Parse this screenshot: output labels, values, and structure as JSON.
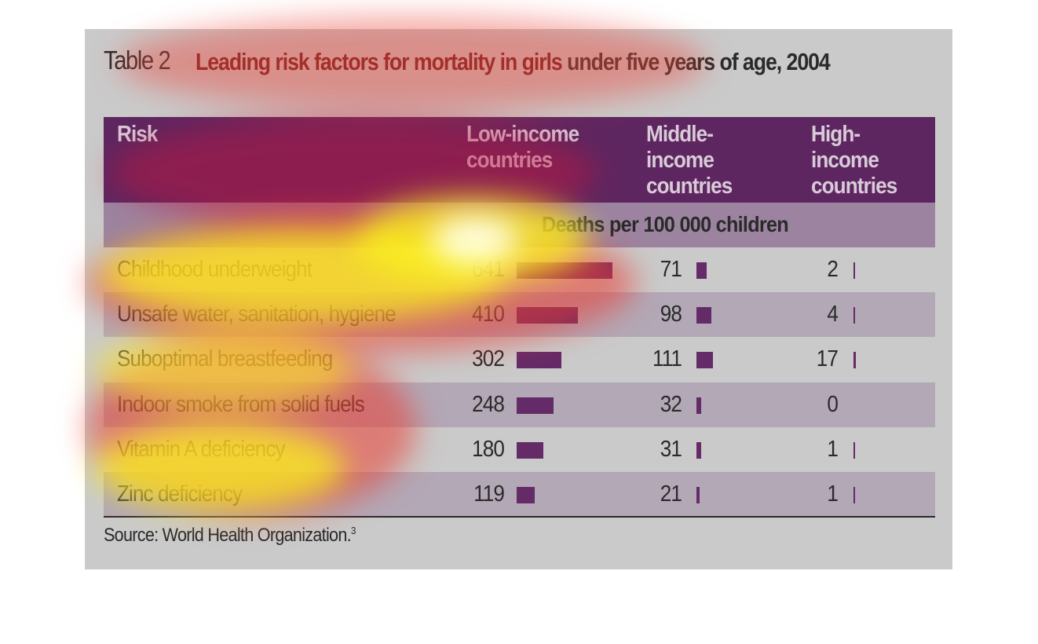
{
  "table_label": "Table 2",
  "title_highlight": "Leading risk factors for mortality in girls",
  "title_rest": " under five years of age, 2004",
  "columns": {
    "risk": "Risk",
    "low": "Low-income\ncountries",
    "middle": "Middle-\nincome\ncountries",
    "high": "High-\nincome\ncountries"
  },
  "unit_label": "Deaths per 100 000 children",
  "rows": [
    {
      "risk": "Childhood underweight",
      "low": "641",
      "middle": "71",
      "high": "2"
    },
    {
      "risk": "Unsafe water, sanitation, hygiene",
      "low": "410",
      "middle": "98",
      "high": "4"
    },
    {
      "risk": "Suboptimal breastfeeding",
      "low": "302",
      "middle": "111",
      "high": "17"
    },
    {
      "risk": "Indoor smoke from solid fuels",
      "low": "248",
      "middle": "32",
      "high": "0"
    },
    {
      "risk": "Vitamin A deficiency",
      "low": "180",
      "middle": "31",
      "high": "1"
    },
    {
      "risk": "Zinc deficiency",
      "low": "119",
      "middle": "21",
      "high": "1"
    }
  ],
  "source": "Source: World Health Organization.",
  "source_ref": "3",
  "colors": {
    "header": "#5e2660",
    "bar": "#652a68",
    "title": "#6b1a1a"
  }
}
